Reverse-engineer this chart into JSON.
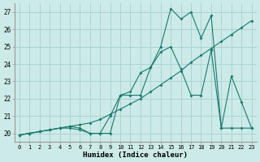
{
  "xlabel": "Humidex (Indice chaleur)",
  "background_color": "#cceae8",
  "grid_color": "#aad4d0",
  "line_color": "#1a7a6e",
  "xlim": [
    -0.5,
    23.5
  ],
  "ylim": [
    19.5,
    27.5
  ],
  "yticks": [
    20,
    21,
    22,
    23,
    24,
    25,
    26,
    27
  ],
  "xticks": [
    0,
    1,
    2,
    3,
    4,
    5,
    6,
    7,
    8,
    9,
    10,
    11,
    12,
    13,
    14,
    15,
    16,
    17,
    18,
    19,
    20,
    21,
    22,
    23
  ],
  "series1_x": [
    0,
    1,
    2,
    3,
    4,
    5,
    6,
    7,
    8,
    9,
    10,
    11,
    12,
    13,
    14,
    15,
    16,
    17,
    18,
    19,
    20,
    21,
    22,
    23
  ],
  "series1_y": [
    19.9,
    20.0,
    20.1,
    20.2,
    20.3,
    20.4,
    20.5,
    20.6,
    20.8,
    21.1,
    21.4,
    21.7,
    22.0,
    22.4,
    22.8,
    23.2,
    23.6,
    24.1,
    24.5,
    24.9,
    25.3,
    25.7,
    26.1,
    26.5
  ],
  "series2_x": [
    0,
    1,
    2,
    3,
    4,
    5,
    6,
    7,
    8,
    9,
    10,
    11,
    12,
    13,
    14,
    15,
    16,
    17,
    18,
    19,
    20,
    21,
    22,
    23
  ],
  "series2_y": [
    19.9,
    20.0,
    20.1,
    20.2,
    20.3,
    20.3,
    20.2,
    20.0,
    20.0,
    21.0,
    22.2,
    22.2,
    22.2,
    23.8,
    24.7,
    25.0,
    23.7,
    22.2,
    22.2,
    24.8,
    20.3,
    23.3,
    21.8,
    20.3
  ],
  "series3_x": [
    0,
    1,
    2,
    3,
    4,
    5,
    6,
    7,
    8,
    9,
    10,
    11,
    12,
    13,
    14,
    15,
    16,
    17,
    18,
    19,
    20,
    21,
    22,
    23
  ],
  "series3_y": [
    19.9,
    20.0,
    20.1,
    20.2,
    20.3,
    20.4,
    20.3,
    20.0,
    20.0,
    20.0,
    22.2,
    22.4,
    23.5,
    23.8,
    25.0,
    27.2,
    26.6,
    27.0,
    25.5,
    26.8,
    20.3,
    20.3,
    20.3,
    20.3
  ]
}
